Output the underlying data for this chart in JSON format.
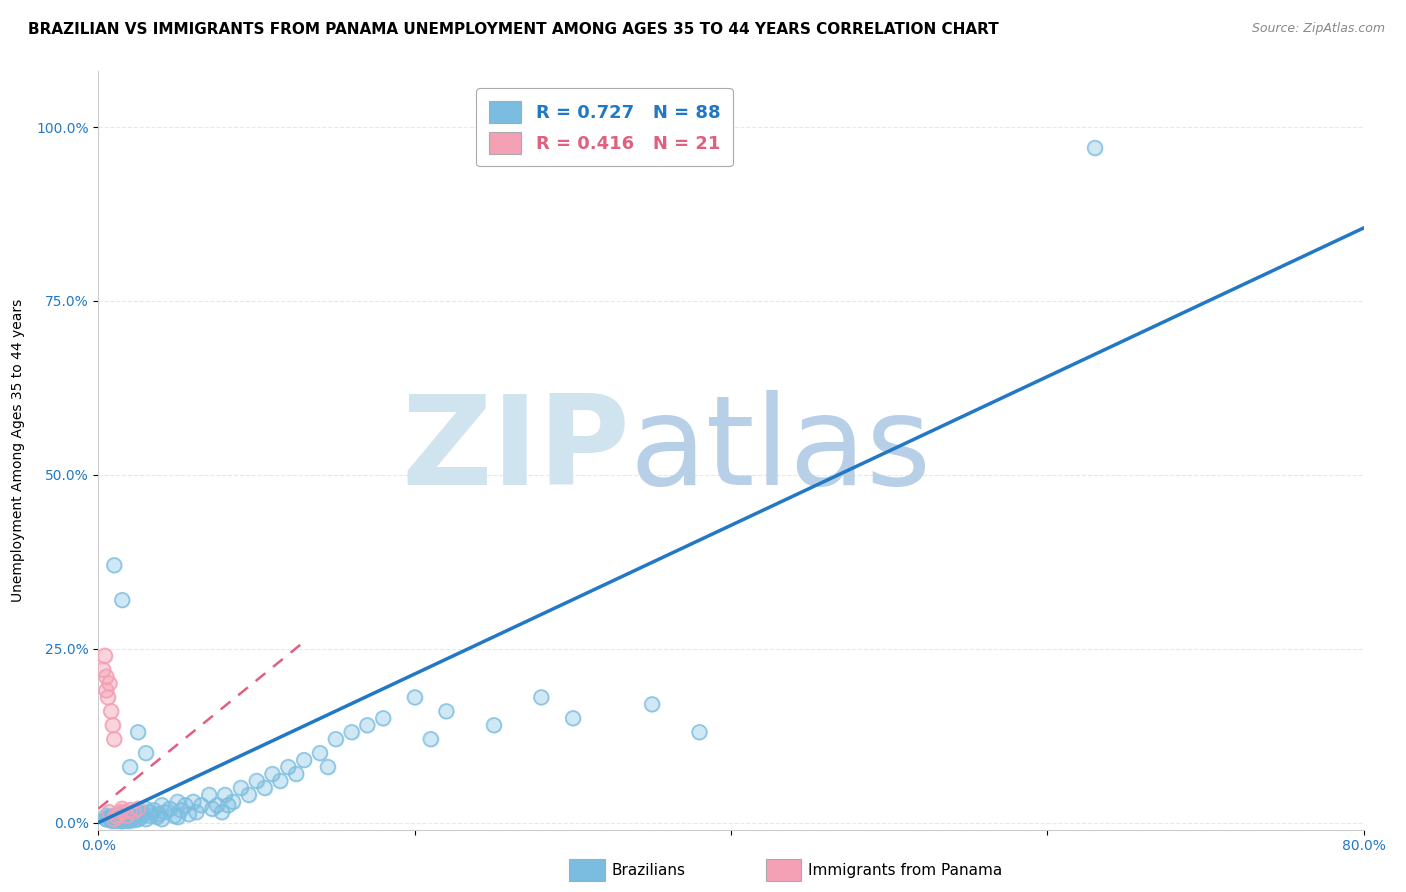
{
  "title": "BRAZILIAN VS IMMIGRANTS FROM PANAMA UNEMPLOYMENT AMONG AGES 35 TO 44 YEARS CORRELATION CHART",
  "source": "Source: ZipAtlas.com",
  "ylabel": "Unemployment Among Ages 35 to 44 years",
  "xlim": [
    0.0,
    0.8
  ],
  "ylim": [
    -0.01,
    1.08
  ],
  "xticks": [
    0.0,
    0.2,
    0.4,
    0.6,
    0.8
  ],
  "xtick_labels": [
    "0.0%",
    "",
    "",
    "",
    "80.0%"
  ],
  "yticks": [
    0.0,
    0.25,
    0.5,
    0.75,
    1.0
  ],
  "ytick_labels": [
    "0.0%",
    "25.0%",
    "50.0%",
    "75.0%",
    "100.0%"
  ],
  "blue_color": "#7bbde0",
  "pink_color": "#f4a0b5",
  "blue_line_color": "#2178c4",
  "pink_line_color": "#e06080",
  "blue_text_color": "#2178c4",
  "pink_text_color": "#e06080",
  "watermark_zip": "ZIP",
  "watermark_atlas": "atlas",
  "watermark_color": "#d0e4f0",
  "background_color": "#ffffff",
  "grid_color": "#e8e8e8",
  "title_fontsize": 11,
  "axis_label_fontsize": 10,
  "tick_fontsize": 10,
  "blue_R": 0.727,
  "blue_N": 88,
  "pink_R": 0.416,
  "pink_N": 21,
  "blue_line_x0": 0.0,
  "blue_line_y0": 0.0,
  "blue_line_x1": 0.8,
  "blue_line_y1": 0.855,
  "pink_line_x0": 0.0,
  "pink_line_y0": 0.02,
  "pink_line_x1": 0.13,
  "pink_line_y1": 0.26,
  "blue_scatter_x": [
    0.005,
    0.007,
    0.008,
    0.009,
    0.01,
    0.01,
    0.01,
    0.012,
    0.013,
    0.014,
    0.015,
    0.015,
    0.016,
    0.017,
    0.018,
    0.019,
    0.02,
    0.02,
    0.021,
    0.022,
    0.023,
    0.025,
    0.025,
    0.027,
    0.028,
    0.03,
    0.03,
    0.032,
    0.033,
    0.035,
    0.037,
    0.038,
    0.04,
    0.04,
    0.042,
    0.045,
    0.048,
    0.05,
    0.05,
    0.052,
    0.055,
    0.057,
    0.06,
    0.062,
    0.065,
    0.07,
    0.072,
    0.075,
    0.078,
    0.08,
    0.082,
    0.085,
    0.09,
    0.095,
    0.1,
    0.105,
    0.11,
    0.115,
    0.12,
    0.125,
    0.13,
    0.14,
    0.145,
    0.15,
    0.16,
    0.17,
    0.18,
    0.2,
    0.21,
    0.22,
    0.25,
    0.28,
    0.3,
    0.35,
    0.38,
    0.025,
    0.03,
    0.01,
    0.015,
    0.02,
    0.005,
    0.007,
    0.008,
    0.01,
    0.012,
    0.013,
    0.63,
    0.005
  ],
  "blue_scatter_y": [
    0.005,
    0.008,
    0.003,
    0.007,
    0.01,
    0.003,
    0.005,
    0.012,
    0.005,
    0.003,
    0.008,
    0.002,
    0.004,
    0.007,
    0.003,
    0.005,
    0.01,
    0.003,
    0.006,
    0.008,
    0.004,
    0.015,
    0.005,
    0.008,
    0.012,
    0.02,
    0.005,
    0.015,
    0.01,
    0.018,
    0.008,
    0.012,
    0.025,
    0.005,
    0.015,
    0.02,
    0.01,
    0.03,
    0.008,
    0.018,
    0.025,
    0.012,
    0.03,
    0.015,
    0.025,
    0.04,
    0.02,
    0.025,
    0.015,
    0.04,
    0.025,
    0.03,
    0.05,
    0.04,
    0.06,
    0.05,
    0.07,
    0.06,
    0.08,
    0.07,
    0.09,
    0.1,
    0.08,
    0.12,
    0.13,
    0.14,
    0.15,
    0.18,
    0.12,
    0.16,
    0.14,
    0.18,
    0.15,
    0.17,
    0.13,
    0.13,
    0.1,
    0.37,
    0.32,
    0.08,
    0.005,
    0.008,
    0.006,
    0.004,
    0.003,
    0.005,
    0.97,
    0.01
  ],
  "pink_scatter_x": [
    0.003,
    0.004,
    0.005,
    0.005,
    0.006,
    0.007,
    0.007,
    0.008,
    0.009,
    0.01,
    0.01,
    0.011,
    0.012,
    0.013,
    0.014,
    0.015,
    0.016,
    0.018,
    0.02,
    0.022,
    0.025
  ],
  "pink_scatter_y": [
    0.22,
    0.24,
    0.19,
    0.21,
    0.18,
    0.2,
    0.015,
    0.16,
    0.14,
    0.12,
    0.005,
    0.01,
    0.008,
    0.012,
    0.015,
    0.02,
    0.015,
    0.01,
    0.018,
    0.015,
    0.02
  ]
}
